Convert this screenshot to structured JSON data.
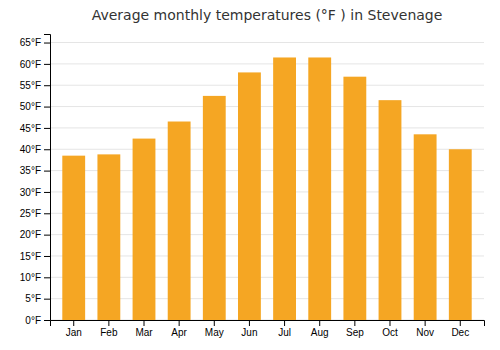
{
  "chart_data": {
    "type": "bar",
    "title": "Average monthly temperatures (°F ) in Stevenage",
    "categories": [
      "Jan",
      "Feb",
      "Mar",
      "Apr",
      "May",
      "Jun",
      "Jul",
      "Aug",
      "Sep",
      "Oct",
      "Nov",
      "Dec"
    ],
    "values": [
      38.5,
      38.8,
      42.5,
      46.5,
      52.5,
      58.0,
      61.5,
      61.5,
      57.0,
      51.5,
      43.5,
      40.0
    ],
    "color": "#F5A623",
    "ylim": [
      0,
      67
    ],
    "yticks": [
      {
        "value": 0,
        "label": "0°F"
      },
      {
        "value": 5,
        "label": "5°F"
      },
      {
        "value": 10,
        "label": "10°F"
      },
      {
        "value": 15,
        "label": "15°F"
      },
      {
        "value": 20,
        "label": "20°F"
      },
      {
        "value": 25,
        "label": "25°F"
      },
      {
        "value": 30,
        "label": "30°F"
      },
      {
        "value": 35,
        "label": "35°F"
      },
      {
        "value": 40,
        "label": "40°F"
      },
      {
        "value": 45,
        "label": "45°F"
      },
      {
        "value": 50,
        "label": "50°F"
      },
      {
        "value": 55,
        "label": "55°F"
      },
      {
        "value": 60,
        "label": "60°F"
      },
      {
        "value": 65,
        "label": "65°F"
      }
    ],
    "grid": true
  }
}
